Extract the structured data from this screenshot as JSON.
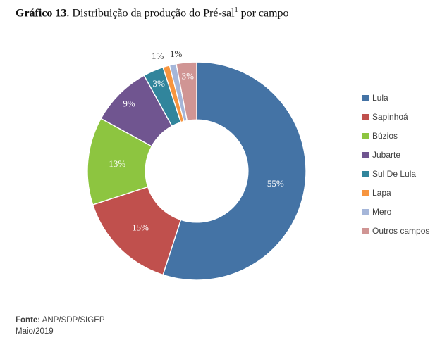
{
  "title": {
    "prefix_bold": "Gráfico 13",
    "main": ". Distribuição da produção do Pré-sal",
    "superscript": "1",
    "suffix": " por campo"
  },
  "footer": {
    "source_label": "Fonte:",
    "source_value": " ANP/SDP/SIGEP",
    "date": "Maio/2019"
  },
  "chart_data": {
    "type": "pie",
    "subtype": "donut",
    "title": "Distribuição da produção do Pré-sal por campo",
    "categories": [
      "Lula",
      "Sapinhoá",
      "Búzios",
      "Jubarte",
      "Sul De Lula",
      "Lapa",
      "Mero",
      "Outros campos"
    ],
    "values": [
      55,
      15,
      13,
      9,
      3,
      1,
      1,
      3
    ],
    "data_labels": [
      "55%",
      "15%",
      "13%",
      "9%",
      "3%",
      "1%",
      "1%",
      "3%"
    ],
    "unit": "%",
    "colors": [
      "#4473A5",
      "#C0504D",
      "#8DC540",
      "#705590",
      "#31859C",
      "#F7953F",
      "#A5B6D9",
      "#D09594"
    ],
    "start_angle_deg": 0,
    "direction": "clockwise",
    "hole_ratio": 0.47,
    "legend_position": "right",
    "data_label_color_inside": "#FFFFFF",
    "data_label_color_outside": "#3a3a3a",
    "slice_border_color": "#FFFFFF"
  }
}
